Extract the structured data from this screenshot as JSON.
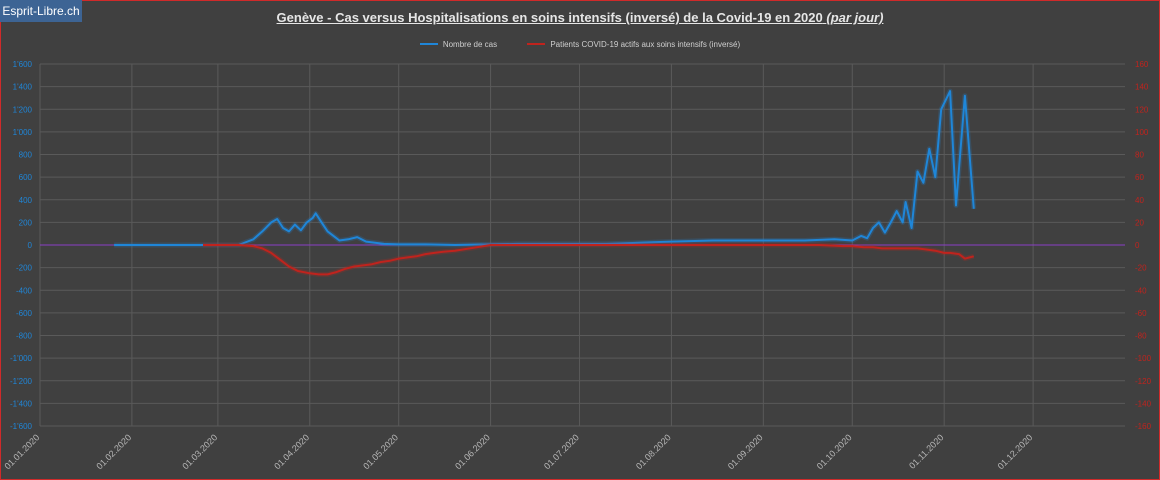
{
  "watermark": "Esprit-Libre.ch",
  "title": "Genève - Cas versus Hospitalisations en soins intensifs (inversé) de la Covid-19 en 2020",
  "subtitle": "(par jour)",
  "colors": {
    "cases": "#1f86d8",
    "icu": "#c0231d",
    "zero_line": "#8a3ec6",
    "background": "#404040",
    "grid": "#5a5a5a"
  },
  "chart_data": {
    "type": "line",
    "title": "Genève - Cas versus Hospitalisations en soins intensifs (inversé) de la Covid-19 en 2020 (par jour)",
    "legend_position": "top-center",
    "grid": true,
    "x_ticks": [
      "01.01.2020",
      "01.02.2020",
      "01.03.2020",
      "01.04.2020",
      "01.05.2020",
      "01.06.2020",
      "01.07.2020",
      "01.08.2020",
      "01.09.2020",
      "01.10.2020",
      "01.11.2020",
      "01.12.2020"
    ],
    "y_left_ticks": [
      "1'600",
      "1'400",
      "1'200",
      "1'000",
      "800",
      "600",
      "400",
      "200",
      "0",
      "-200",
      "-400",
      "-600",
      "-800",
      "-1'000",
      "-1'200",
      "-1'400",
      "-1'600"
    ],
    "y_right_ticks": [
      "160",
      "140",
      "120",
      "100",
      "80",
      "60",
      "40",
      "20",
      "0",
      "-20",
      "-40",
      "-60",
      "-80",
      "-100",
      "-120",
      "-140",
      "-160"
    ],
    "y_left_range": [
      -1600,
      1600
    ],
    "y_right_range": [
      -160,
      160
    ],
    "series": [
      {
        "name": "Nombre de cas",
        "axis": "left",
        "x": [
          "2020-01-26",
          "2020-02-25",
          "2020-03-08",
          "2020-03-13",
          "2020-03-16",
          "2020-03-19",
          "2020-03-21",
          "2020-03-23",
          "2020-03-25",
          "2020-03-27",
          "2020-03-29",
          "2020-03-31",
          "2020-04-02",
          "2020-04-03",
          "2020-04-05",
          "2020-04-07",
          "2020-04-09",
          "2020-04-11",
          "2020-04-14",
          "2020-04-17",
          "2020-04-20",
          "2020-04-23",
          "2020-04-26",
          "2020-05-01",
          "2020-05-10",
          "2020-05-20",
          "2020-06-10",
          "2020-07-10",
          "2020-08-01",
          "2020-08-15",
          "2020-09-01",
          "2020-09-15",
          "2020-09-25",
          "2020-10-01",
          "2020-10-04",
          "2020-10-06",
          "2020-10-08",
          "2020-10-10",
          "2020-10-12",
          "2020-10-14",
          "2020-10-16",
          "2020-10-18",
          "2020-10-19",
          "2020-10-21",
          "2020-10-23",
          "2020-10-25",
          "2020-10-27",
          "2020-10-29",
          "2020-10-31",
          "2020-11-03",
          "2020-11-05",
          "2020-11-08",
          "2020-11-11"
        ],
        "y": [
          0,
          0,
          0,
          50,
          120,
          200,
          230,
          150,
          120,
          180,
          130,
          200,
          240,
          280,
          200,
          120,
          80,
          40,
          50,
          70,
          30,
          20,
          10,
          5,
          5,
          0,
          10,
          10,
          30,
          40,
          40,
          40,
          50,
          40,
          80,
          60,
          150,
          200,
          110,
          200,
          300,
          200,
          380,
          150,
          650,
          550,
          850,
          600,
          1200,
          1360,
          350,
          1320,
          320
        ]
      },
      {
        "name": "Patients COVID-19 actifs aux soins intensifs  (inversé)",
        "axis": "right",
        "x": [
          "2020-02-25",
          "2020-03-08",
          "2020-03-13",
          "2020-03-16",
          "2020-03-19",
          "2020-03-22",
          "2020-03-25",
          "2020-03-28",
          "2020-04-01",
          "2020-04-04",
          "2020-04-07",
          "2020-04-10",
          "2020-04-13",
          "2020-04-16",
          "2020-04-19",
          "2020-04-22",
          "2020-04-25",
          "2020-04-28",
          "2020-05-01",
          "2020-05-04",
          "2020-05-07",
          "2020-05-10",
          "2020-05-13",
          "2020-05-16",
          "2020-05-20",
          "2020-05-25",
          "2020-06-01",
          "2020-06-15",
          "2020-07-01",
          "2020-08-01",
          "2020-09-01",
          "2020-09-20",
          "2020-09-28",
          "2020-10-01",
          "2020-10-05",
          "2020-10-08",
          "2020-10-11",
          "2020-10-14",
          "2020-10-17",
          "2020-10-20",
          "2020-10-23",
          "2020-10-26",
          "2020-10-29",
          "2020-11-01",
          "2020-11-03",
          "2020-11-06",
          "2020-11-08",
          "2020-11-11"
        ],
        "y": [
          0,
          0,
          -1,
          -3,
          -7,
          -13,
          -19,
          -23,
          -25,
          -26,
          -26,
          -24,
          -21,
          -19,
          -18,
          -17,
          -15,
          -14,
          -12,
          -11,
          -10,
          -8,
          -7,
          -6,
          -5,
          -3,
          0,
          0,
          0,
          0,
          0,
          0,
          -1,
          -1,
          -2,
          -2,
          -3,
          -3,
          -3,
          -3,
          -3,
          -4,
          -5,
          -7,
          -7,
          -8,
          -12,
          -10
        ]
      }
    ]
  }
}
